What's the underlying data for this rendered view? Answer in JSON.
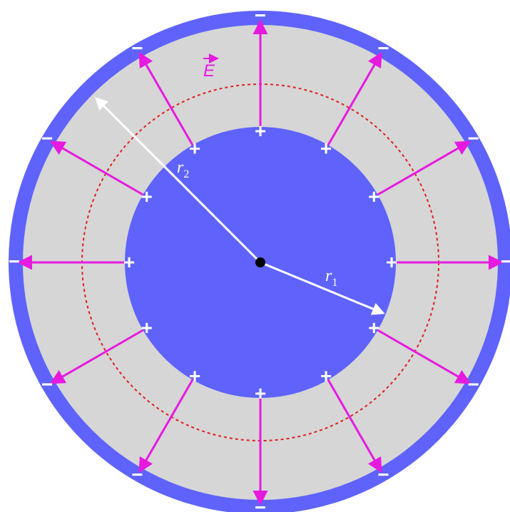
{
  "diagram": {
    "colors": {
      "conductor": "#5f63fb",
      "gap": "#d6d6d6",
      "field_arrow": "#e61adf",
      "gaussian_surface": "#e02020",
      "radius_arrow": "#ffffff",
      "center_dot": "#000000"
    },
    "labels": {
      "inner_radius": {
        "base": "r",
        "sub": "1"
      },
      "outer_radius": {
        "base": "r",
        "sub": "2"
      },
      "field": "E"
    },
    "inner_charge_symbol": "+",
    "outer_charge_symbol": "−",
    "field_line_count": 12
  }
}
